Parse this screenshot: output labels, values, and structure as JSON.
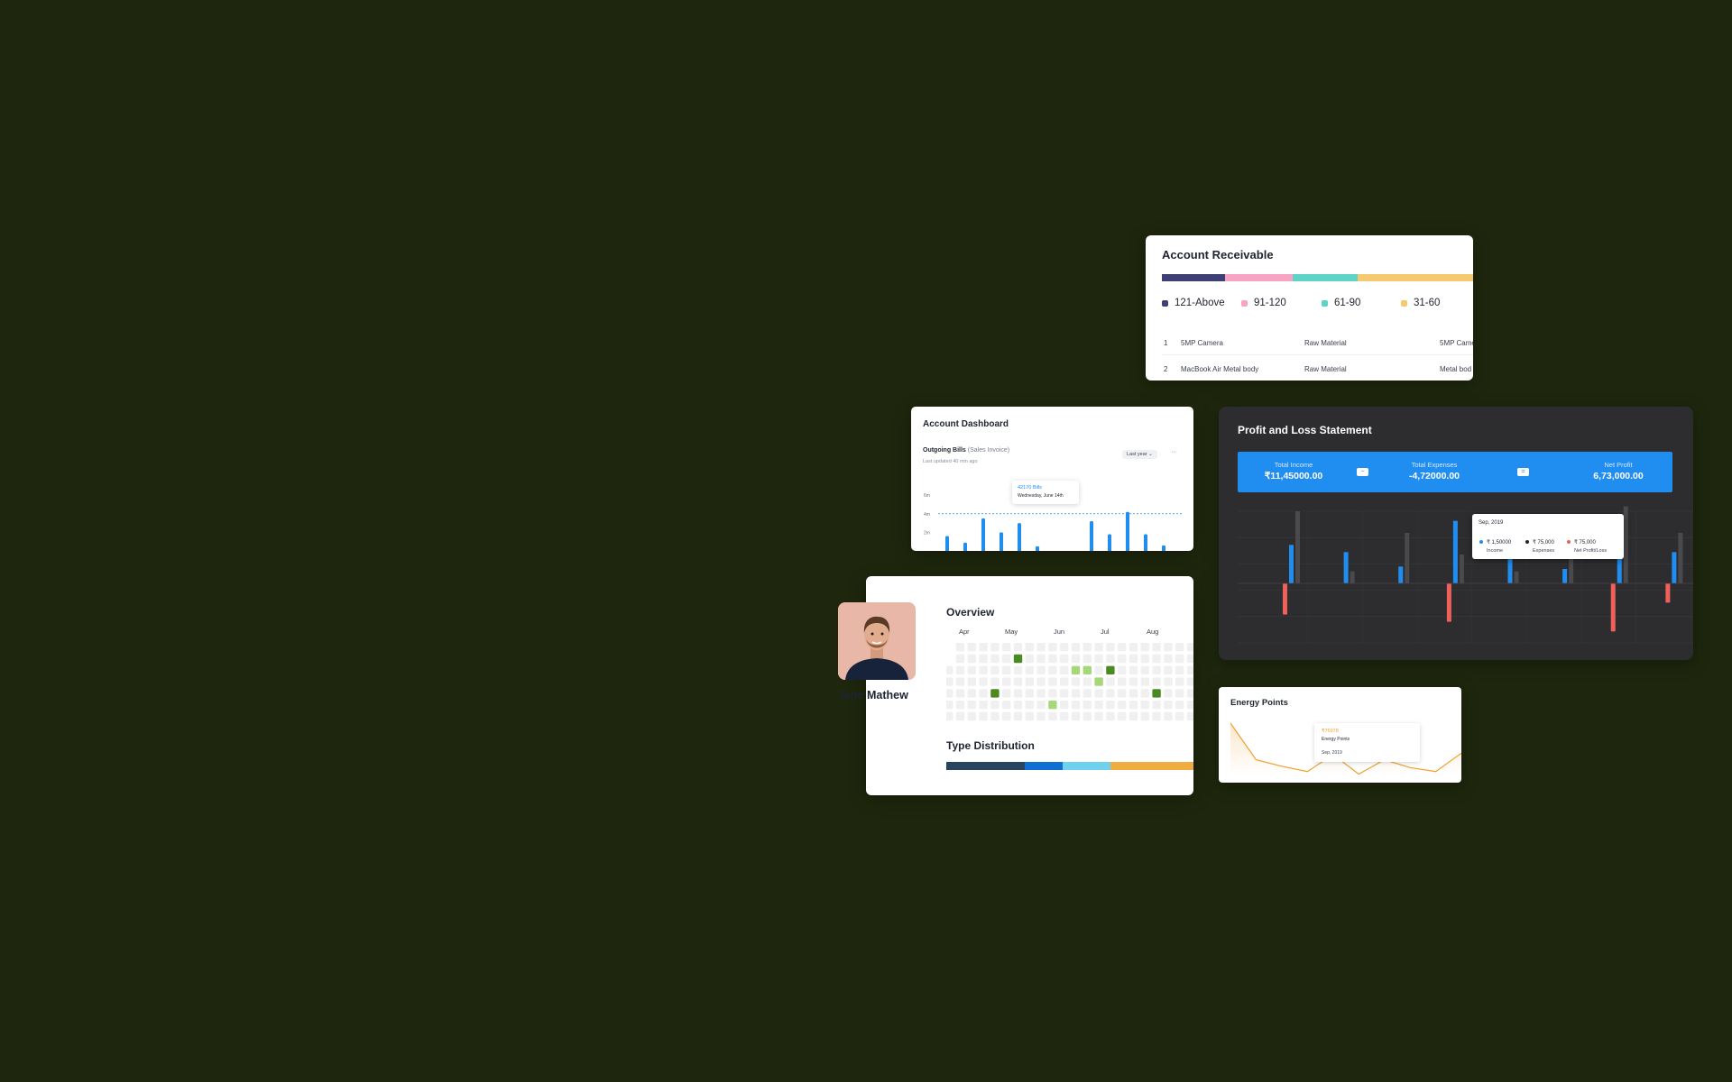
{
  "account_receivable": {
    "title": "Account Receivable",
    "segments": [
      {
        "label": "121-Above",
        "color": "#3d3f75",
        "share": 0.204
      },
      {
        "label": "91-120",
        "color": "#f7a3c4",
        "share": 0.217
      },
      {
        "label": "61-90",
        "color": "#5fd3c7",
        "share": 0.207
      },
      {
        "label": "31-60",
        "color": "#f5c970",
        "share": 0.372
      }
    ],
    "rows": [
      {
        "index": "1",
        "item": "5MP Camera",
        "type": "Raw Material",
        "extra": "5MP Came"
      },
      {
        "index": "2",
        "item": "MacBook Air Metal body",
        "type": "Raw Material",
        "extra": "Metal bod"
      }
    ]
  },
  "account_dashboard": {
    "title": "Account Dashboard",
    "subtitle_bold": "Outgoing Bills",
    "subtitle_note": "(Sales Invoice)",
    "updated": "Last updated 40 min ago",
    "period": "Last year",
    "more": "···",
    "tooltip": {
      "value": "42170 Bills",
      "date": "Wednesday, June 14th"
    },
    "accent": "#1f8ef0",
    "chart_data": {
      "type": "bar",
      "yticks": [
        "6m",
        "4m",
        "2m"
      ],
      "ylim": [
        0,
        6.5
      ],
      "reference_line": 4,
      "values": [
        1.6,
        0.9,
        3.5,
        2.0,
        3.0,
        0.5,
        0,
        0,
        3.2,
        1.8,
        4.2,
        1.8,
        0.6
      ]
    }
  },
  "overview": {
    "title": "Overview",
    "months": [
      "Apr",
      "May",
      "Jun",
      "Jul",
      "Aug"
    ],
    "type_distribution_title": "Type Distribution",
    "type_distribution": [
      {
        "color": "#274560",
        "share": 0.31
      },
      {
        "color": "#0f6fd2",
        "share": 0.15
      },
      {
        "color": "#6fd0ef",
        "share": 0.19
      },
      {
        "color": "#f0ad3f",
        "share": 0.35
      }
    ],
    "heatmap_levels": {
      "0": "#f0f0f0",
      "1": "#a6d87a",
      "2": "#4b8a21"
    },
    "heatmap_active": [
      {
        "col": 6,
        "row": 1,
        "level": 2
      },
      {
        "col": 11,
        "row": 2,
        "level": 1
      },
      {
        "col": 12,
        "row": 2,
        "level": 1
      },
      {
        "col": 14,
        "row": 2,
        "level": 2
      },
      {
        "col": 13,
        "row": 3,
        "level": 1
      },
      {
        "col": 4,
        "row": 4,
        "level": 2
      },
      {
        "col": 18,
        "row": 4,
        "level": 2
      },
      {
        "col": 9,
        "row": 5,
        "level": 1
      }
    ],
    "profile_name": "Jane Mathew"
  },
  "profit_loss": {
    "title": "Profit and Loss Statement",
    "accent": "#1f8ef0",
    "total_income_label": "Total Income",
    "total_income": "₹11,45000.00",
    "total_expenses_label": "Total Expenses",
    "total_expenses": "-4,72000.00",
    "net_profit_label": "Net Profit",
    "net_profit": "6,73,000.00",
    "op_minus": "−",
    "op_equals": "=",
    "tooltip": {
      "date": "Sep, 2019",
      "income_value": "₹ 1,50000",
      "income_label": "Income",
      "expenses_value": "₹ 75,000",
      "expenses_label": "Expenses",
      "net_value": "₹ 75,000",
      "net_label": "Net Profit/Loss"
    },
    "chart_data": {
      "type": "bar",
      "series": [
        {
          "name": "Income",
          "color": "#1f8ef0",
          "values": [
            1.6,
            1.3,
            0.7,
            2.6,
            1.1,
            0.6,
            1.2,
            1.3
          ]
        },
        {
          "name": "Expenses",
          "color": "#4a4a4c",
          "values": [
            3.0,
            0.5,
            2.1,
            1.2,
            0.5,
            1.6,
            3.2,
            2.1
          ]
        },
        {
          "name": "Net Profit/Loss",
          "color": "#f0605a",
          "values": [
            -1.3,
            0,
            0,
            -1.6,
            0,
            0,
            -2.0,
            -0.8
          ]
        }
      ],
      "ylim": [
        -2.0,
        3.0
      ]
    }
  },
  "energy_points": {
    "title": "Energy Points",
    "tooltip": {
      "value": "₹76978",
      "label": "Energy Points",
      "date": "Sep, 2019"
    },
    "accent": "#f0a030",
    "chart_data": {
      "type": "area",
      "values": [
        4.0,
        1.2,
        0.7,
        0.3,
        1.6,
        0.1,
        1.2,
        0.6,
        0.3,
        1.7
      ]
    }
  }
}
